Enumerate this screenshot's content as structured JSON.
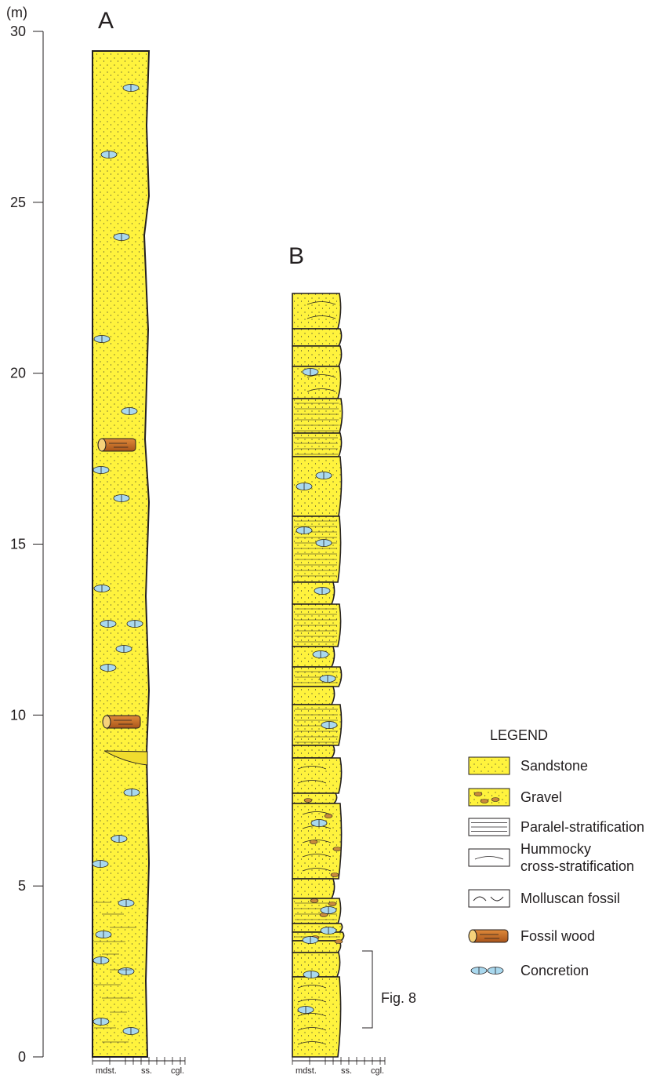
{
  "axis": {
    "unit": "(m)",
    "ticks": [
      0,
      5,
      10,
      15,
      20,
      25,
      30
    ]
  },
  "columns": [
    {
      "label": "A",
      "grain_size_labels": [
        "mdst.",
        "ss.",
        "cgl."
      ]
    },
    {
      "label": "B",
      "grain_size_labels": [
        "mdst.",
        "ss.",
        "cgl."
      ]
    }
  ],
  "legend": {
    "title": "LEGEND",
    "items": [
      {
        "label": "Sandstone"
      },
      {
        "label": "Gravel"
      },
      {
        "label": "Paralel-stratification"
      },
      {
        "label_lines": [
          "Hummocky",
          "cross-stratification"
        ]
      },
      {
        "label": "Molluscan fossil"
      },
      {
        "label": "Fossil wood"
      },
      {
        "label": "Concretion"
      }
    ]
  },
  "annotation": "Fig. 8"
}
